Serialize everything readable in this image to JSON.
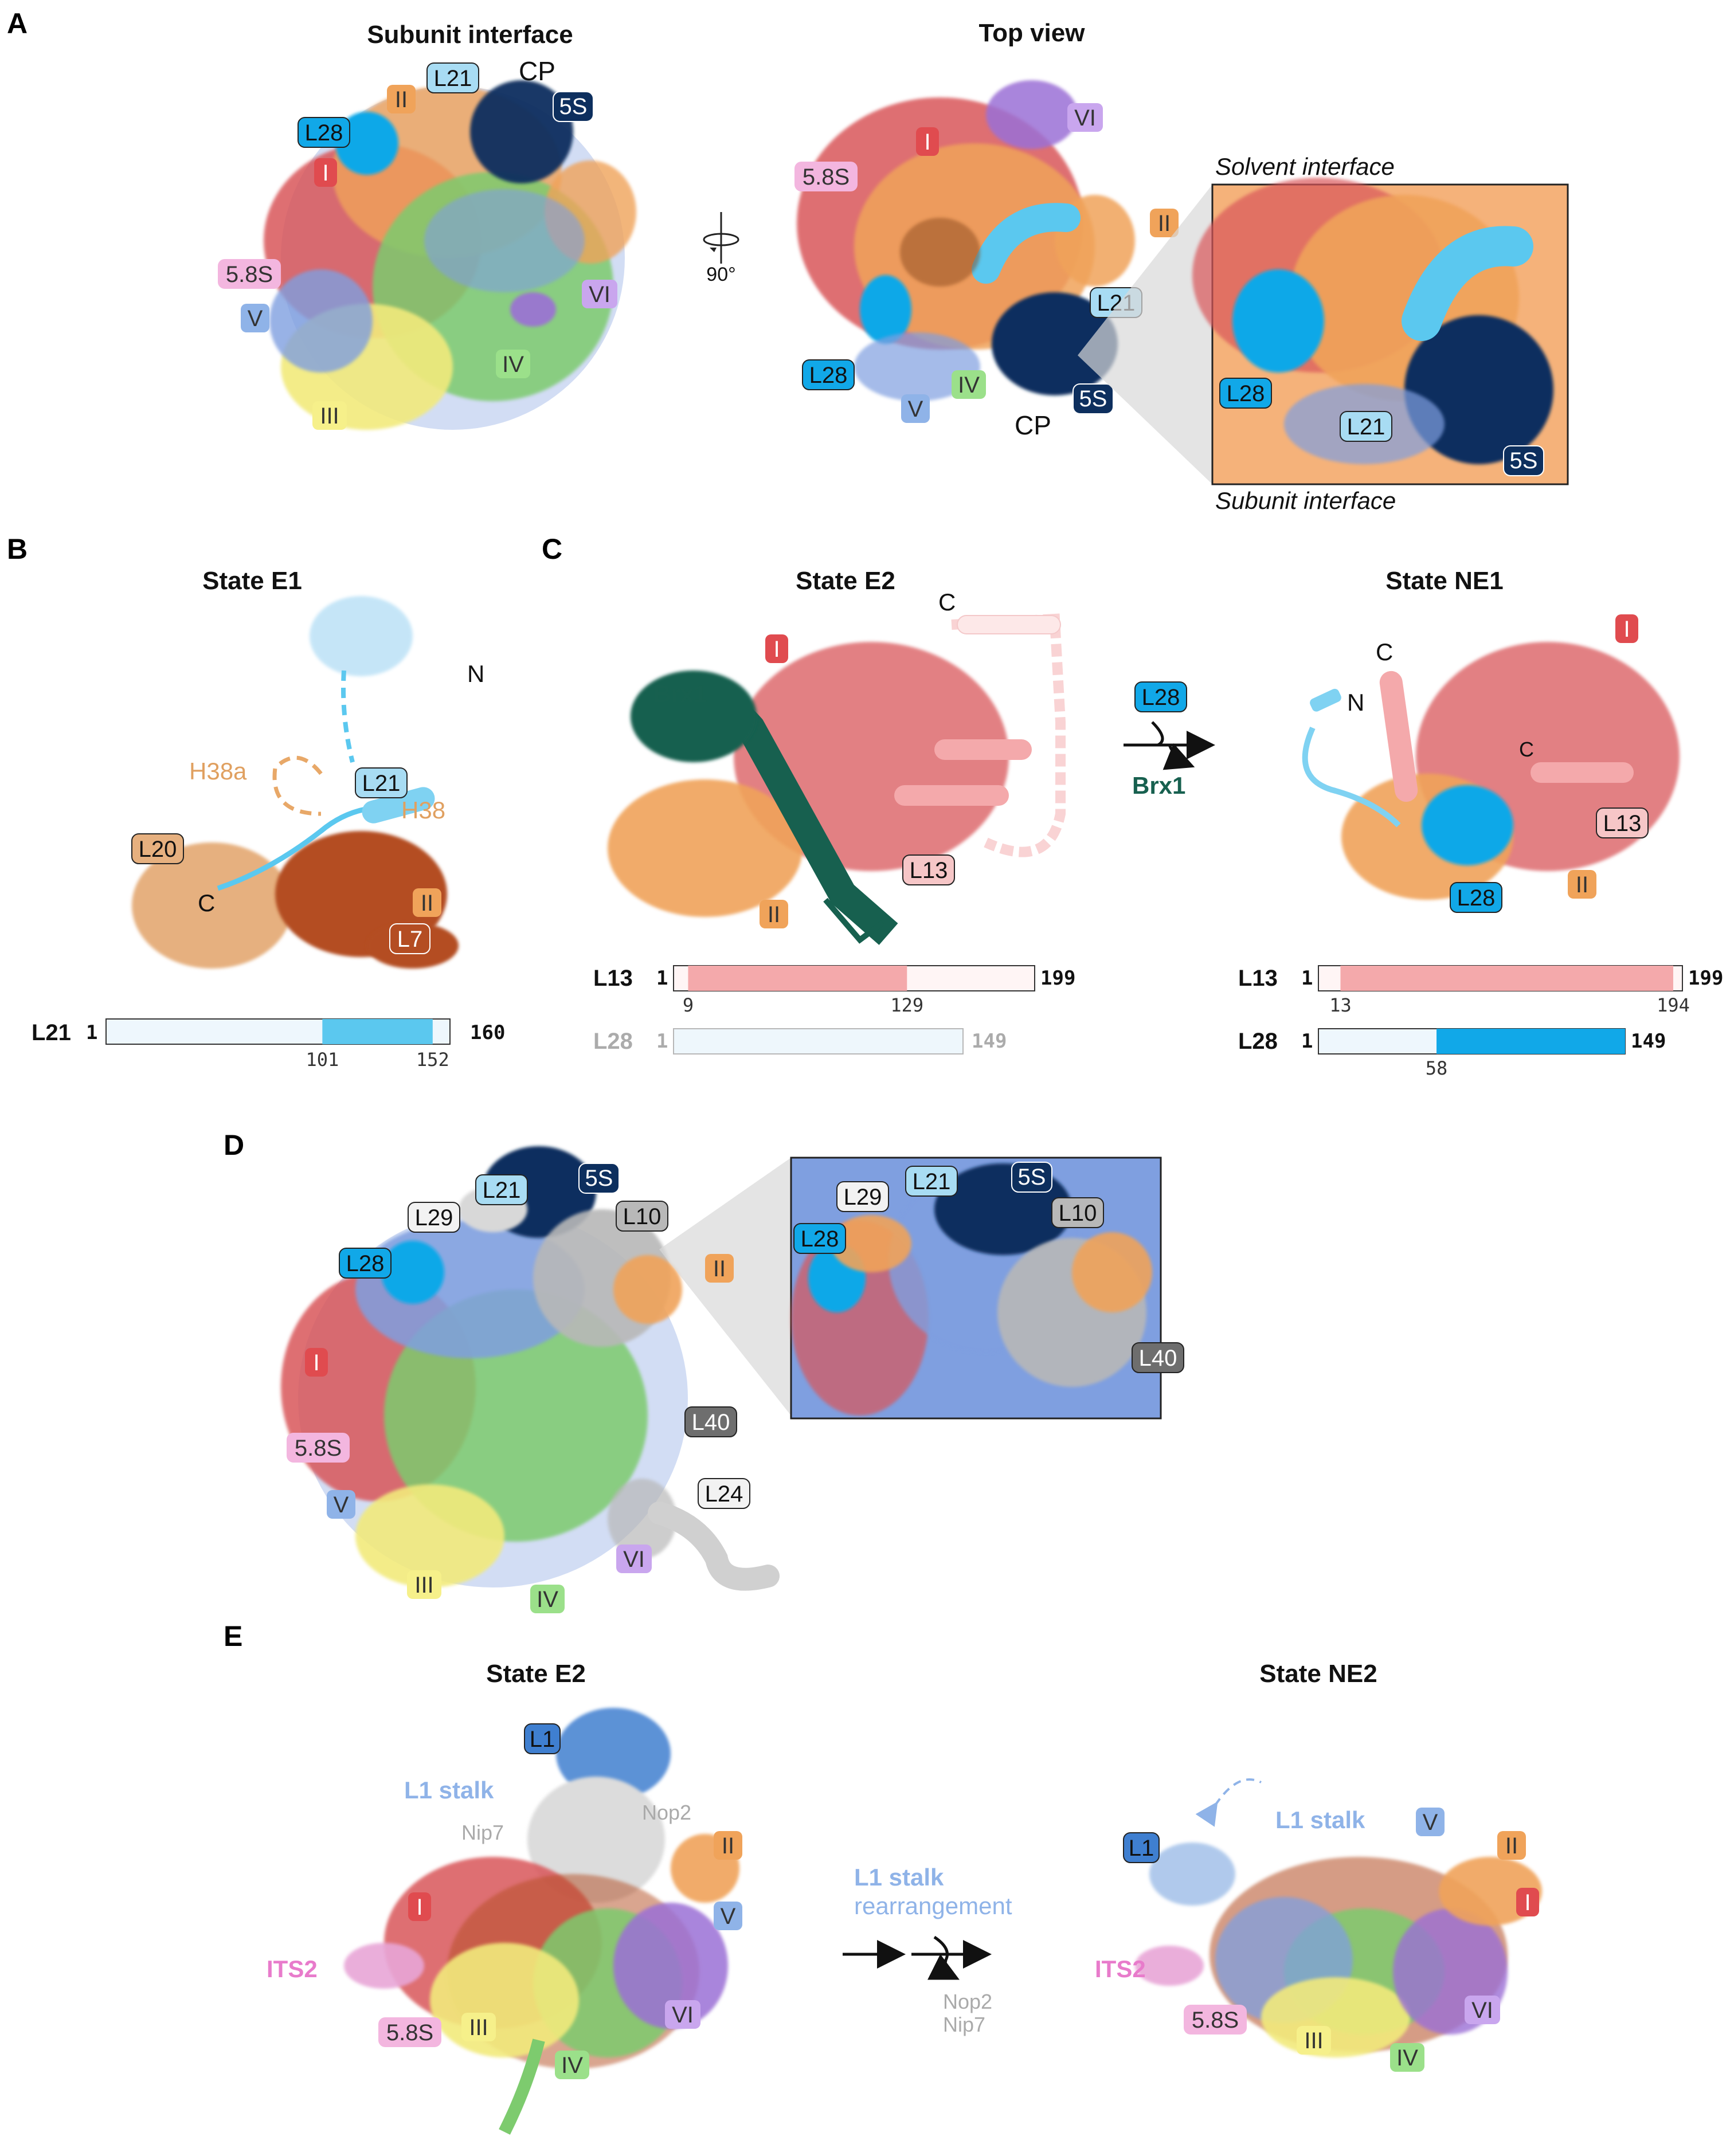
{
  "panels": {
    "A": {
      "letter": "A",
      "title_left": "Subunit interface",
      "title_right": "Top view",
      "rotation": "90°",
      "solvent": "Solvent interface",
      "subunit": "Subunit interface",
      "cp": "CP",
      "cp2": "CP"
    },
    "B": {
      "letter": "B",
      "title": "State E1",
      "h38a": "H38a",
      "h38": "H38",
      "n": "N",
      "c": "C"
    },
    "C": {
      "letter": "C",
      "title_left": "State E2",
      "title_right": "State NE1",
      "brx1": "Brx1",
      "brx1_arrow": "Brx1",
      "c1": "C",
      "c2": "C",
      "c3": "C",
      "n": "N"
    },
    "D": {
      "letter": "D"
    },
    "E": {
      "letter": "E",
      "title_left": "State E2",
      "title_right": "State NE2",
      "l1stalk": "L1 stalk",
      "l1stalk2": "L1 stalk",
      "nip7": "Nip7",
      "nop2": "Nop2",
      "arrow_line1": "L1 stalk",
      "arrow_line2": "rearrangement",
      "released1": "Nop2",
      "released2": "Nip7"
    }
  },
  "labels": {
    "L21": "L21",
    "L28": "L28",
    "L20": "L20",
    "L7": "L7",
    "L13": "L13",
    "L29": "L29",
    "L10": "L10",
    "L40": "L40",
    "L24": "L24",
    "L1": "L1",
    "I": "I",
    "II": "II",
    "III": "III",
    "IV": "IV",
    "V": "V",
    "VI": "VI",
    "s58": "5.8S",
    "s5": "5S",
    "ITS2": "ITS2"
  },
  "bars": {
    "L21": {
      "name": "L21",
      "start": "1",
      "end": "160",
      "a": "101",
      "b": "152",
      "range": [
        1,
        160
      ],
      "domain": [
        101,
        152
      ],
      "color": "#5bc8ef"
    },
    "L13_E2": {
      "name": "L13",
      "start": "1",
      "end": "199",
      "a": "9",
      "b": "129",
      "range": [
        1,
        199
      ],
      "domain": [
        9,
        129
      ],
      "color": "#f4a9ab"
    },
    "L28_E2": {
      "name": "L28",
      "start": "1",
      "end": "149",
      "range": [
        1,
        149
      ]
    },
    "L13_NE1": {
      "name": "L13",
      "start": "1",
      "end": "199",
      "a": "13",
      "b": "194",
      "range": [
        1,
        199
      ],
      "domain": [
        13,
        194
      ],
      "color": "#f4a9ab"
    },
    "L28_NE1": {
      "name": "L28",
      "start": "1",
      "end": "149",
      "a": "58",
      "range": [
        1,
        149
      ],
      "domain": [
        58,
        149
      ],
      "color": "#11a8e8"
    }
  },
  "colors": {
    "red": "#d9575a",
    "orange": "#f0a35a",
    "yellow": "#f2ea7c",
    "green": "#7dcb6e",
    "blue": "#7f9fe0",
    "purple": "#9b6fd6",
    "navy": "#0d2f5e",
    "lightblue": "#5bc8ef",
    "deepblue": "#11a8e8",
    "pink": "#e87bcb",
    "grey": "#b8b8b8",
    "darkgreen": "#17604f",
    "brown": "#b44d22",
    "sand": "#e6b07f",
    "salmon": "#f4a9ab"
  }
}
